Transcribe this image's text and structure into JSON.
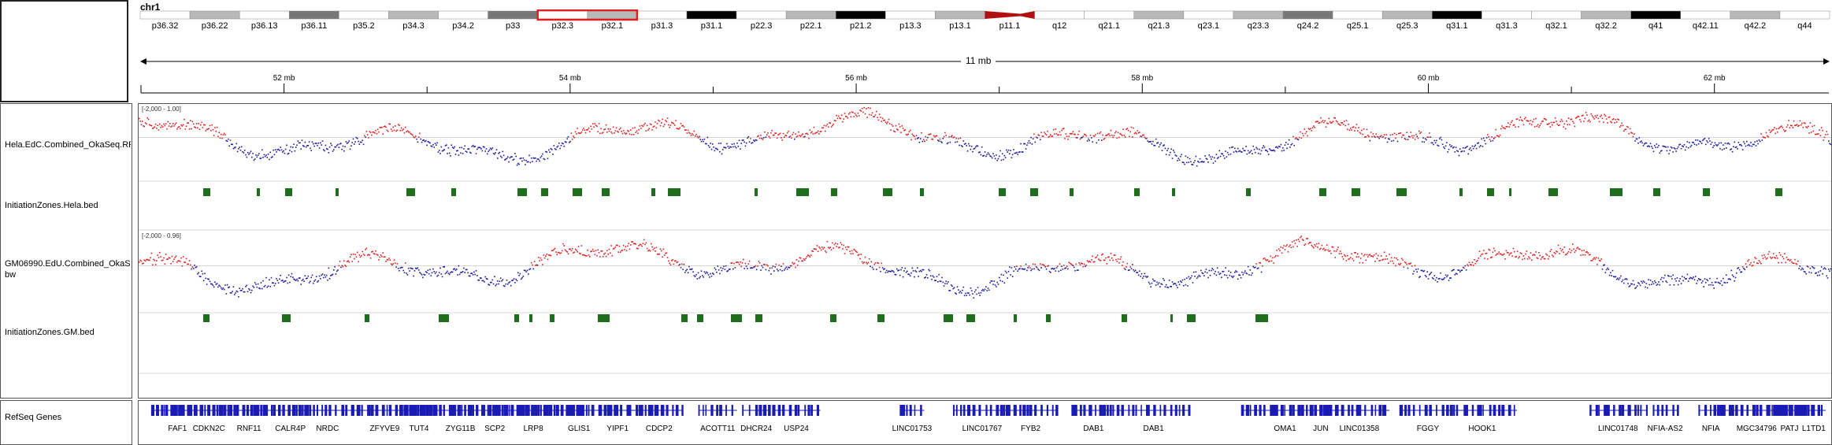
{
  "chromosome": "chr1",
  "region_size_label": "11 mb",
  "ideogram": {
    "bands": [
      {
        "name": "p36.32",
        "stain": "w"
      },
      {
        "name": "p36.22",
        "stain": "g"
      },
      {
        "name": "p36.13",
        "stain": "w"
      },
      {
        "name": "p36.11",
        "stain": "d"
      },
      {
        "name": "p35.2",
        "stain": "w"
      },
      {
        "name": "p34.3",
        "stain": "g"
      },
      {
        "name": "p34.2",
        "stain": "w"
      },
      {
        "name": "p33",
        "stain": "d"
      },
      {
        "name": "p32.3",
        "stain": "w"
      },
      {
        "name": "p32.1",
        "stain": "g"
      },
      {
        "name": "p31.3",
        "stain": "w"
      },
      {
        "name": "p31.1",
        "stain": "b"
      },
      {
        "name": "p22.3",
        "stain": "w"
      },
      {
        "name": "p22.1",
        "stain": "g"
      },
      {
        "name": "p21.2",
        "stain": "b"
      },
      {
        "name": "p13.3",
        "stain": "w"
      },
      {
        "name": "p13.1",
        "stain": "g"
      },
      {
        "name": "p11.1",
        "stain": "w"
      },
      {
        "name": "q12",
        "stain": "w"
      },
      {
        "name": "q21.1",
        "stain": "w"
      },
      {
        "name": "q21.3",
        "stain": "g"
      },
      {
        "name": "q23.1",
        "stain": "w"
      },
      {
        "name": "q23.3",
        "stain": "g"
      },
      {
        "name": "q24.2",
        "stain": "d"
      },
      {
        "name": "q25.1",
        "stain": "w"
      },
      {
        "name": "q25.3",
        "stain": "g"
      },
      {
        "name": "q31.1",
        "stain": "b"
      },
      {
        "name": "q31.3",
        "stain": "w"
      },
      {
        "name": "q32.1",
        "stain": "w"
      },
      {
        "name": "q32.2",
        "stain": "g"
      },
      {
        "name": "q41",
        "stain": "b"
      },
      {
        "name": "q42.11",
        "stain": "w"
      },
      {
        "name": "q42.2",
        "stain": "g"
      },
      {
        "name": "q44",
        "stain": "w"
      }
    ],
    "highlight_color": "#e02020"
  },
  "ruler": {
    "ticks_mb": [
      52,
      54,
      56,
      58,
      60,
      62
    ],
    "tick_labels": [
      "52 mb",
      "54 mb",
      "56 mb",
      "58 mb",
      "60 mb",
      "62 mb"
    ],
    "view_start_mb": 51.0,
    "view_end_mb": 62.8
  },
  "tracks": [
    {
      "label": "Hela.EdC.Combined_OkaSeq.RF",
      "data_range": "[-2,000 - 1.00]",
      "type": "scatter"
    },
    {
      "label": "InitiationZones.Hela.bed",
      "type": "bed"
    },
    {
      "label": "GM06990.EdU.Combined_OkaSe\nbw",
      "data_range": "[-2,000 - 0.96]",
      "type": "scatter"
    },
    {
      "label": "InitiationZones.GM.bed",
      "type": "bed"
    }
  ],
  "colors": {
    "positive": "#e02020",
    "negative": "#1a1aa0",
    "bed": "#1e6e1e",
    "gene": "#1a1ab4"
  },
  "gene_track": {
    "label": "RefSeq Genes",
    "genes": [
      {
        "name": "FAF1",
        "mb": 51.25
      },
      {
        "name": "CDKN2C",
        "mb": 51.47
      },
      {
        "name": "RNF11",
        "mb": 51.75
      },
      {
        "name": "CALR4P",
        "mb": 52.04
      },
      {
        "name": "NRDC",
        "mb": 52.3
      },
      {
        "name": "ZFYVE9",
        "mb": 52.7
      },
      {
        "name": "TUT4",
        "mb": 52.94
      },
      {
        "name": "ZYG11B",
        "mb": 53.23
      },
      {
        "name": "SCP2",
        "mb": 53.47
      },
      {
        "name": "LRP8",
        "mb": 53.74
      },
      {
        "name": "GLIS1",
        "mb": 54.06
      },
      {
        "name": "YIPF1",
        "mb": 54.33
      },
      {
        "name": "CDCP2",
        "mb": 54.62
      },
      {
        "name": "ACOTT11",
        "mb": 55.03
      },
      {
        "name": "DHCR24",
        "mb": 55.3
      },
      {
        "name": "USP24",
        "mb": 55.58
      },
      {
        "name": "LINC01753",
        "mb": 56.39
      },
      {
        "name": "LINC01767",
        "mb": 56.88
      },
      {
        "name": "FYB2",
        "mb": 57.22
      },
      {
        "name": "DAB1",
        "mb": 57.66
      },
      {
        "name": "DAB1",
        "mb": 58.08
      },
      {
        "name": "OMA1",
        "mb": 59.0
      },
      {
        "name": "JUN",
        "mb": 59.25
      },
      {
        "name": "LINC01358",
        "mb": 59.52
      },
      {
        "name": "FGGY",
        "mb": 60.0
      },
      {
        "name": "HOOK1",
        "mb": 60.38
      },
      {
        "name": "LINC01748",
        "mb": 61.33
      },
      {
        "name": "NFIA-AS2",
        "mb": 61.66
      },
      {
        "name": "NFIA",
        "mb": 61.98
      },
      {
        "name": "MGC34796",
        "mb": 62.3
      },
      {
        "name": "PATJ",
        "mb": 62.53
      },
      {
        "name": "L1TD1",
        "mb": 62.7
      }
    ]
  }
}
